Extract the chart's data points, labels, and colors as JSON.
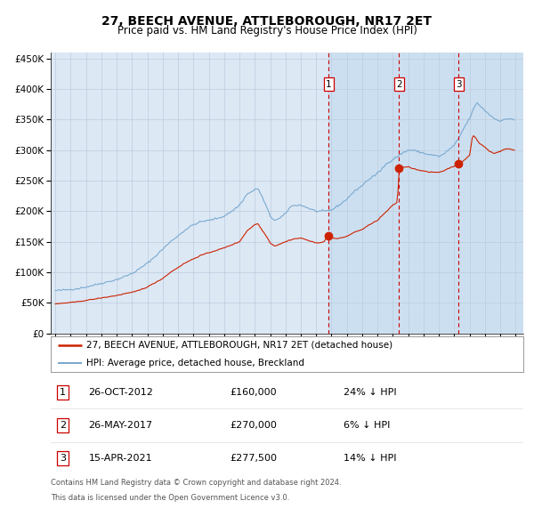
{
  "title": "27, BEECH AVENUE, ATTLEBOROUGH, NR17 2ET",
  "subtitle": "Price paid vs. HM Land Registry's House Price Index (HPI)",
  "hpi_label": "HPI: Average price, detached house, Breckland",
  "property_label": "27, BEECH AVENUE, ATTLEBOROUGH, NR17 2ET (detached house)",
  "footer1": "Contains HM Land Registry data © Crown copyright and database right 2024.",
  "footer2": "This data is licensed under the Open Government Licence v3.0.",
  "transactions": [
    {
      "num": 1,
      "date": "26-OCT-2012",
      "price": 160000,
      "pct": "24%",
      "dir": "↓"
    },
    {
      "num": 2,
      "date": "26-MAY-2017",
      "price": 270000,
      "pct": "6%",
      "dir": "↓"
    },
    {
      "num": 3,
      "date": "15-APR-2021",
      "price": 277500,
      "pct": "14%",
      "dir": "↓"
    }
  ],
  "transaction_dates_decimal": [
    2012.82,
    2017.4,
    2021.29
  ],
  "transaction_prices": [
    160000,
    270000,
    277500
  ],
  "ylim": [
    0,
    460000
  ],
  "yticks": [
    0,
    50000,
    100000,
    150000,
    200000,
    250000,
    300000,
    350000,
    400000,
    450000
  ],
  "xlim_start": 1994.7,
  "xlim_end": 2025.5,
  "background_color": "#ffffff",
  "plot_bg_color": "#dde8f5",
  "shaded_region_color": "#ccdff0",
  "grid_color": "#bbccdd",
  "hpi_line_color": "#7aaad0",
  "property_line_color": "#cc2200",
  "dashed_line_color": "#cc0000",
  "title_fontsize": 10,
  "subtitle_fontsize": 8.5,
  "tick_fontsize": 7.5,
  "legend_fontsize": 7.5,
  "table_fontsize": 8,
  "footer_fontsize": 6
}
